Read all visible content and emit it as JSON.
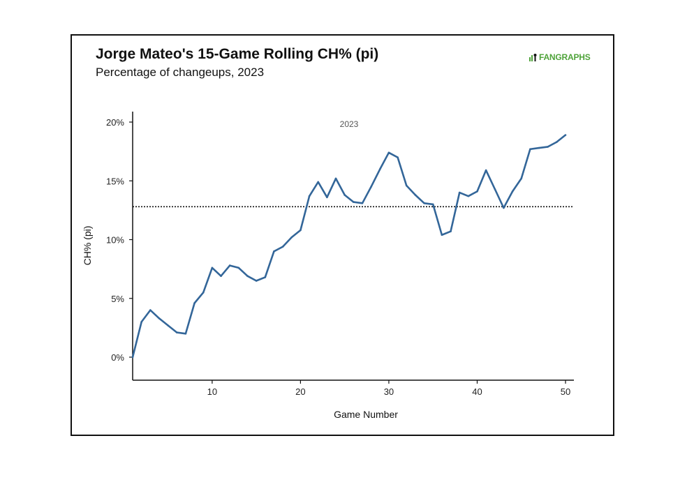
{
  "header": {
    "title": "Jorge Mateo's 15-Game Rolling CH% (pi)",
    "subtitle": "Percentage of changeups, 2023",
    "logo_text": "FANGRAPHS"
  },
  "colors": {
    "line": "#336699",
    "logo": "#4fa33a",
    "reference": "#111111"
  },
  "chart_data": {
    "type": "line",
    "title": "Jorge Mateo's 15-Game Rolling CH% (pi)",
    "subtitle": "Percentage of changeups, 2023",
    "xlabel": "Game Number",
    "ylabel": "CH% (pi)",
    "annotation": "2023",
    "xlim": [
      1,
      51
    ],
    "ylim": [
      -2,
      21
    ],
    "x_ticks": [
      10,
      20,
      30,
      40,
      50
    ],
    "x_tick_labels": [
      "10",
      "20",
      "30",
      "40",
      "50"
    ],
    "y_ticks": [
      0,
      5,
      10,
      15,
      20
    ],
    "y_tick_labels": [
      "0%",
      "5%",
      "10%",
      "15%",
      "20%"
    ],
    "reference_line": {
      "value": 12.8,
      "style": "dotted",
      "label": ""
    },
    "series": [
      {
        "name": "CH% (pi)",
        "x": [
          1,
          2,
          3,
          4,
          5,
          6,
          7,
          8,
          9,
          10,
          11,
          12,
          13,
          14,
          15,
          16,
          17,
          18,
          19,
          20,
          21,
          22,
          23,
          24,
          25,
          26,
          27,
          28,
          29,
          30,
          31,
          32,
          33,
          34,
          35,
          36,
          37,
          38,
          39,
          40,
          41,
          42,
          43,
          44,
          45,
          46,
          47,
          48,
          49,
          50
        ],
        "values": [
          0.0,
          3.0,
          4.0,
          3.3,
          2.7,
          2.1,
          2.0,
          4.6,
          5.5,
          7.6,
          6.9,
          7.8,
          7.6,
          6.9,
          6.5,
          6.8,
          9.0,
          9.4,
          10.2,
          10.8,
          13.7,
          14.9,
          13.6,
          15.2,
          13.8,
          13.2,
          13.1,
          14.5,
          16.0,
          17.4,
          17.0,
          14.6,
          13.8,
          13.1,
          13.0,
          10.4,
          10.7,
          14.0,
          13.7,
          14.1,
          15.9,
          14.3,
          12.7,
          14.1,
          15.2,
          17.7,
          17.8,
          17.9,
          18.3,
          18.9
        ]
      }
    ]
  }
}
